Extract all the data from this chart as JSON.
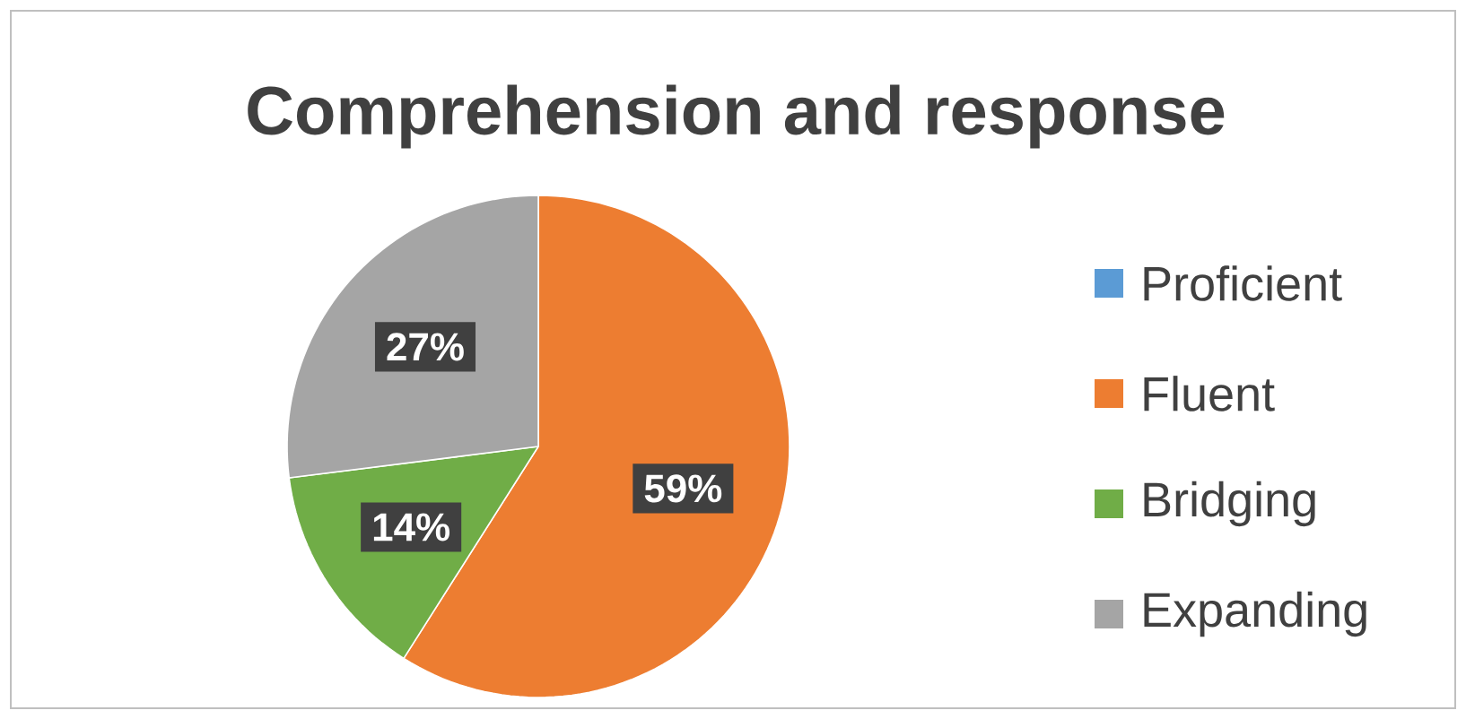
{
  "chart_data": {
    "type": "pie",
    "title": "Comprehension and response",
    "categories": [
      "Proficient",
      "Fluent",
      "Bridging",
      "Expanding"
    ],
    "values": [
      0,
      59,
      14,
      27
    ],
    "colors": [
      "#5b9bd5",
      "#ed7d31",
      "#70ad47",
      "#a5a5a5"
    ],
    "value_labels": [
      null,
      "59%",
      "14%",
      "27%"
    ],
    "legend": "right"
  }
}
